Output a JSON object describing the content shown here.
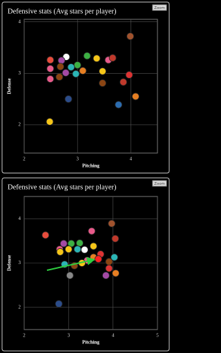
{
  "chart_data": [
    {
      "type": "scatter",
      "title": "Defensive stats (Avg stars per player)",
      "button": "Zoom",
      "x_label": "Pitching",
      "y_label": "Defense",
      "xlim": [
        2,
        4.5
      ],
      "ylim": [
        1.45,
        4.05
      ],
      "xticks": [
        2,
        3,
        4
      ],
      "yticks": [
        2,
        3,
        4
      ],
      "grid": true,
      "x": [
        3.99,
        2.79,
        3.18,
        3.36,
        3.58,
        3.66,
        2.49,
        2.7,
        3.0,
        2.68,
        2.88,
        3.1,
        2.49,
        3.47,
        2.78,
        2.97,
        3.97,
        2.49,
        2.66,
        3.86,
        3.47,
        4.09,
        2.83,
        3.77,
        2.48
      ],
      "y": [
        3.72,
        3.32,
        3.34,
        3.29,
        3.26,
        3.3,
        3.26,
        3.25,
        3.16,
        3.13,
        3.12,
        3.05,
        3.09,
        3.04,
        3.01,
        2.99,
        2.97,
        2.89,
        2.93,
        2.83,
        2.81,
        2.55,
        2.5,
        2.39,
        2.06
      ],
      "colors": [
        "#a0522d",
        "#ffffff",
        "#3cb043",
        "#f5c518",
        "#e85a8a",
        "#c0392b",
        "#e74c3c",
        "#a349a4",
        "#3cb043",
        "#8b4513",
        "#2bb5b5",
        "#e67e22",
        "#e85a8a",
        "#f5c518",
        "#a349a4",
        "#2bb5b5",
        "#d33",
        "#e85a8a",
        "#8b4513",
        "#c0392b",
        "#8b4513",
        "#e67e22",
        "#2b4c8a",
        "#2b6cb0",
        "#f5c518"
      ]
    },
    {
      "type": "scatter",
      "title": "Defensive stats (Avg stars per player)",
      "button": "Zoom",
      "x_label": "Pitching",
      "y_label": "Defense",
      "xlim": [
        2,
        5
      ],
      "ylim": [
        1.5,
        4.5
      ],
      "xticks": [
        2,
        3,
        4,
        5
      ],
      "yticks": [
        2,
        3,
        4
      ],
      "grid": true,
      "x": [
        3.97,
        2.48,
        3.52,
        4.05,
        3.25,
        2.89,
        3.06,
        3.56,
        2.8,
        3.0,
        3.2,
        3.36,
        3.72,
        3.56,
        4.03,
        2.81,
        3.91,
        2.91,
        3.13,
        3.42,
        3.3,
        3.91,
        4.06,
        3.84,
        3.03,
        2.78,
        3.67
      ],
      "y": [
        3.89,
        3.63,
        3.72,
        3.55,
        3.45,
        3.44,
        3.44,
        3.38,
        3.31,
        3.31,
        3.31,
        3.3,
        3.2,
        3.13,
        3.13,
        3.25,
        3.03,
        2.97,
        2.94,
        3.06,
        3.0,
        2.88,
        2.77,
        2.72,
        2.72,
        2.08,
        3.09
      ],
      "colors": [
        "#a0522d",
        "#e74c3c",
        "#e85a8a",
        "#c0392b",
        "#3cb043",
        "#a349a4",
        "#3cb043",
        "#f5c518",
        "#e85a8a",
        "#f5c518",
        "#2bb5b5",
        "#ffffff",
        "#d33",
        "#e67e22",
        "#2bb5b5",
        "#f5c518",
        "#8b4513",
        "#2bb5b5",
        "#8b4513",
        "#e85a8a",
        "#f5c518",
        "#d33",
        "#e67e22",
        "#a349a4",
        "#888888",
        "#2b4c8a",
        "#ff2222"
      ]
    }
  ]
}
